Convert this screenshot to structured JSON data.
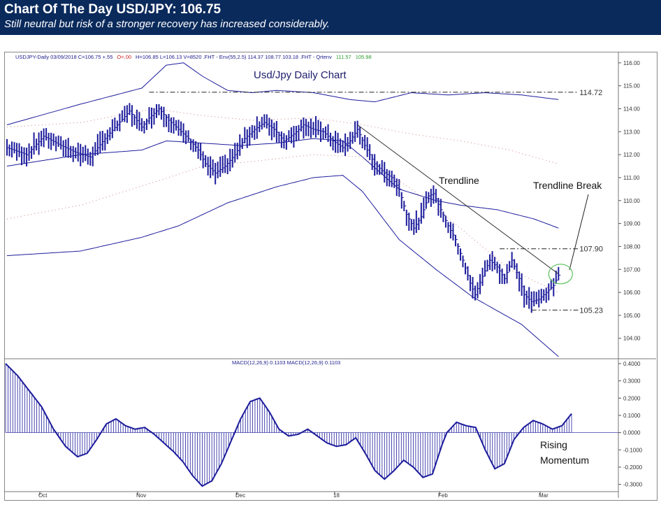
{
  "header": {
    "title": "Chart Of The Day USD/JPY: 106.75",
    "subtitle": "Still neutral but risk of a stronger recovery has increased considerably."
  },
  "chart_data": [
    {
      "type": "bar",
      "title": "Usd/Jpy Daily Chart",
      "info_line": [
        {
          "text": "USDJPY-Daily   03/09/2018   C=106.75   +.55",
          "color": "#1c1c8c"
        },
        {
          "text": "O=.00",
          "color": "#d02020"
        },
        {
          "text": "H=106.85   L=106.13   V=8520   .FHT - Env(55,2.5)   114.37   108.77   103.18   .FHT - Qrtenv",
          "color": "#1c1c8c"
        },
        {
          "text": "111.57",
          "color": "#2a9a2a"
        },
        {
          "text": "105.98",
          "color": "#2a9a2a"
        }
      ],
      "y_ticks": [
        "116.00",
        "115.00",
        "114.00",
        "113.00",
        "112.00",
        "111.00",
        "110.00",
        "109.00",
        "108.00",
        "107.00",
        "106.00",
        "105.00",
        "104.00"
      ],
      "x_labels": [
        "Oct",
        "Nov",
        "Dec",
        "18",
        "Feb",
        "Mar"
      ],
      "ylim": [
        103.2,
        116.3
      ],
      "levels": [
        {
          "label": "114.72",
          "value": 114.72
        },
        {
          "label": "107.90",
          "value": 107.9
        },
        {
          "label": "105.23",
          "value": 105.23
        }
      ],
      "annotations": {
        "trendline": "Trendline",
        "trendline_break": "Trendline Break"
      },
      "anchors": [
        [
          0,
          112.3
        ],
        [
          8,
          112.0
        ],
        [
          15,
          112.8
        ],
        [
          22,
          112.4
        ],
        [
          28,
          112.1
        ],
        [
          34,
          111.9
        ],
        [
          40,
          112.7
        ],
        [
          45,
          113.3
        ],
        [
          50,
          113.9
        ],
        [
          55,
          113.2
        ],
        [
          58,
          113.6
        ],
        [
          62,
          114.0
        ],
        [
          66,
          113.5
        ],
        [
          70,
          113.1
        ],
        [
          74,
          112.7
        ],
        [
          78,
          112.2
        ],
        [
          81,
          111.6
        ],
        [
          85,
          111.2
        ],
        [
          89,
          111.5
        ],
        [
          93,
          112.0
        ],
        [
          97,
          112.7
        ],
        [
          101,
          113.1
        ],
        [
          105,
          113.4
        ],
        [
          109,
          113.1
        ],
        [
          113,
          112.6
        ],
        [
          117,
          112.9
        ],
        [
          121,
          113.3
        ],
        [
          125,
          113.1
        ],
        [
          129,
          113.0
        ],
        [
          133,
          112.6
        ],
        [
          137,
          112.3
        ],
        [
          140,
          112.6
        ],
        [
          143,
          113.1
        ],
        [
          146,
          112.4
        ],
        [
          150,
          111.6
        ],
        [
          154,
          111.2
        ],
        [
          157,
          111.0
        ],
        [
          160,
          110.5
        ],
        [
          163,
          109.4
        ],
        [
          166,
          108.8
        ],
        [
          169,
          109.3
        ],
        [
          172,
          110.2
        ],
        [
          174,
          110.3
        ],
        [
          177,
          109.6
        ],
        [
          180,
          108.9
        ],
        [
          183,
          108.3
        ],
        [
          186,
          107.4
        ],
        [
          189,
          106.4
        ],
        [
          191,
          105.9
        ],
        [
          194,
          106.7
        ],
        [
          197,
          107.4
        ],
        [
          200,
          107.1
        ],
        [
          203,
          106.6
        ],
        [
          206,
          107.4
        ],
        [
          209,
          106.6
        ],
        [
          211,
          105.9
        ],
        [
          214,
          105.6
        ],
        [
          217,
          105.7
        ],
        [
          220,
          106.0
        ],
        [
          223,
          106.3
        ],
        [
          225,
          106.75
        ]
      ],
      "env_upper": [
        [
          0,
          113.3
        ],
        [
          30,
          114.2
        ],
        [
          55,
          114.9
        ],
        [
          65,
          115.9
        ],
        [
          72,
          116.0
        ],
        [
          80,
          115.4
        ],
        [
          90,
          114.8
        ],
        [
          100,
          114.7
        ],
        [
          110,
          114.8
        ],
        [
          125,
          114.7
        ],
        [
          140,
          114.4
        ],
        [
          150,
          114.3
        ],
        [
          165,
          114.7
        ],
        [
          180,
          114.6
        ],
        [
          195,
          114.7
        ],
        [
          210,
          114.6
        ],
        [
          225,
          114.4
        ]
      ],
      "env_mid": [
        [
          0,
          111.5
        ],
        [
          30,
          112.0
        ],
        [
          55,
          112.2
        ],
        [
          65,
          112.6
        ],
        [
          80,
          112.5
        ],
        [
          95,
          112.4
        ],
        [
          110,
          112.5
        ],
        [
          125,
          112.7
        ],
        [
          137,
          112.6
        ],
        [
          145,
          111.9
        ],
        [
          160,
          110.5
        ],
        [
          175,
          110.0
        ],
        [
          185,
          109.8
        ],
        [
          200,
          109.6
        ],
        [
          215,
          109.2
        ],
        [
          225,
          108.8
        ]
      ],
      "env_lower": [
        [
          0,
          107.6
        ],
        [
          30,
          107.8
        ],
        [
          55,
          108.4
        ],
        [
          70,
          108.9
        ],
        [
          90,
          109.9
        ],
        [
          110,
          110.6
        ],
        [
          125,
          111.0
        ],
        [
          137,
          111.1
        ],
        [
          145,
          110.4
        ],
        [
          160,
          108.3
        ],
        [
          175,
          107.0
        ],
        [
          190,
          105.8
        ],
        [
          210,
          104.6
        ],
        [
          225,
          103.2
        ]
      ],
      "qrt_upper": [
        [
          0,
          113.2
        ],
        [
          30,
          113.4
        ],
        [
          60,
          114.0
        ],
        [
          80,
          113.7
        ],
        [
          100,
          113.5
        ],
        [
          125,
          113.6
        ],
        [
          145,
          113.3
        ],
        [
          165,
          112.9
        ],
        [
          185,
          112.6
        ],
        [
          205,
          112.2
        ],
        [
          225,
          111.6
        ]
      ],
      "qrt_lower": [
        [
          0,
          109.2
        ],
        [
          30,
          109.8
        ],
        [
          60,
          110.8
        ],
        [
          80,
          111.5
        ],
        [
          100,
          111.7
        ],
        [
          125,
          112.0
        ],
        [
          145,
          111.9
        ],
        [
          165,
          110.5
        ],
        [
          185,
          108.8
        ],
        [
          205,
          107.0
        ],
        [
          225,
          106.0
        ]
      ],
      "trendline_from": [
        143,
        113.3
      ],
      "trendline_to": [
        225,
        106.8
      ],
      "level_spans": [
        [
          58,
          233
        ],
        [
          201,
          233
        ],
        [
          214,
          233
        ]
      ]
    },
    {
      "type": "bar",
      "title": "MACD(12,26,9)  0.1103  MACD(12,26,9)  0.1103",
      "y_ticks": [
        "0.4000",
        "0.3000",
        "0.2000",
        "0.1000",
        "0.0000",
        "-0.1000",
        "-0.2000",
        "-0.3000"
      ],
      "ylim": [
        -0.33,
        0.42
      ],
      "annotation": "Rising\nMomentum",
      "macd_anchors": [
        [
          0,
          0.4
        ],
        [
          5,
          0.33
        ],
        [
          10,
          0.24
        ],
        [
          15,
          0.15
        ],
        [
          20,
          0.02
        ],
        [
          25,
          -0.08
        ],
        [
          30,
          -0.14
        ],
        [
          34,
          -0.12
        ],
        [
          38,
          -0.04
        ],
        [
          42,
          0.05
        ],
        [
          46,
          0.08
        ],
        [
          50,
          0.04
        ],
        [
          54,
          0.02
        ],
        [
          58,
          0.03
        ],
        [
          62,
          -0.01
        ],
        [
          66,
          -0.06
        ],
        [
          70,
          -0.11
        ],
        [
          74,
          -0.17
        ],
        [
          78,
          -0.25
        ],
        [
          82,
          -0.31
        ],
        [
          86,
          -0.28
        ],
        [
          90,
          -0.18
        ],
        [
          94,
          -0.05
        ],
        [
          98,
          0.08
        ],
        [
          102,
          0.18
        ],
        [
          106,
          0.2
        ],
        [
          110,
          0.12
        ],
        [
          114,
          0.02
        ],
        [
          118,
          -0.02
        ],
        [
          122,
          -0.01
        ],
        [
          126,
          0.02
        ],
        [
          130,
          -0.02
        ],
        [
          134,
          -0.06
        ],
        [
          138,
          -0.08
        ],
        [
          142,
          -0.07
        ],
        [
          146,
          -0.03
        ],
        [
          150,
          -0.12
        ],
        [
          154,
          -0.22
        ],
        [
          158,
          -0.27
        ],
        [
          162,
          -0.22
        ],
        [
          166,
          -0.16
        ],
        [
          170,
          -0.2
        ],
        [
          174,
          -0.26
        ],
        [
          178,
          -0.24
        ],
        [
          182,
          -0.07
        ],
        [
          184,
          0.0
        ],
        [
          188,
          0.06
        ],
        [
          192,
          0.04
        ],
        [
          196,
          0.03
        ],
        [
          200,
          -0.1
        ],
        [
          204,
          -0.21
        ],
        [
          208,
          -0.18
        ],
        [
          212,
          -0.04
        ],
        [
          216,
          0.03
        ],
        [
          220,
          0.07
        ],
        [
          224,
          0.05
        ],
        [
          228,
          0.02
        ],
        [
          232,
          0.04
        ],
        [
          236,
          0.11
        ]
      ]
    }
  ]
}
